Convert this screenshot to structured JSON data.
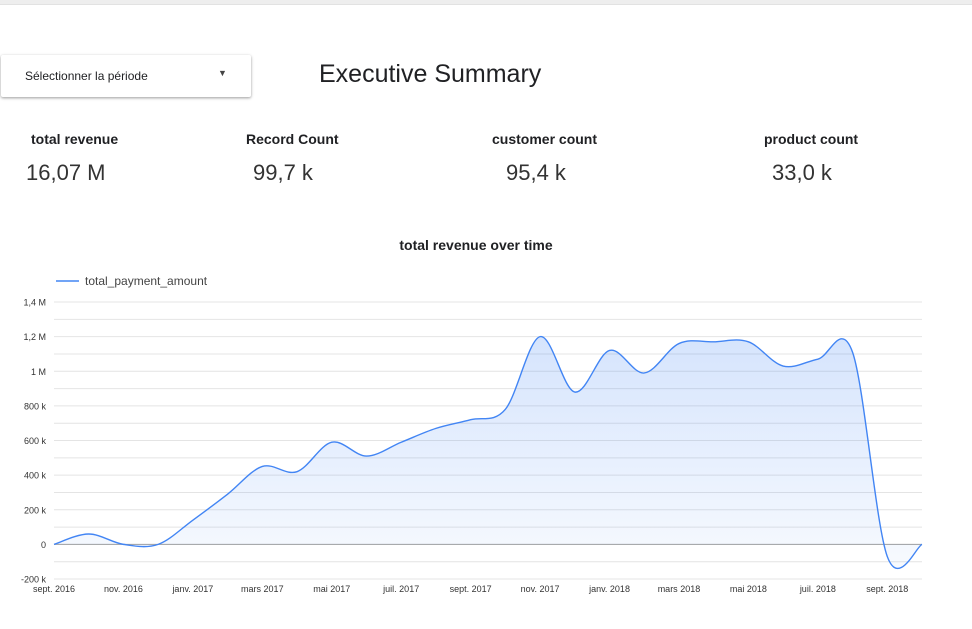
{
  "period_selector": {
    "label": "Sélectionner la période"
  },
  "header": {
    "title": "Executive Summary"
  },
  "kpis": [
    {
      "label": "total revenue",
      "value": "16,07 M"
    },
    {
      "label": "Record Count",
      "value": "99,7 k"
    },
    {
      "label": "customer count",
      "value": "95,4 k"
    },
    {
      "label": "product count",
      "value": "33,0 k"
    }
  ],
  "chart_data": {
    "type": "area",
    "title": "total revenue over time",
    "xlabel": "",
    "ylabel": "",
    "ylim": [
      -200000,
      1400000
    ],
    "y_ticks": [
      -200000,
      0,
      200000,
      400000,
      600000,
      800000,
      1000000,
      1200000,
      1400000
    ],
    "y_tick_labels": [
      "-200 k",
      "0",
      "200 k",
      "400 k",
      "600 k",
      "800 k",
      "1 M",
      "1,2 M",
      "1,4 M"
    ],
    "x_tick_labels": [
      "sept. 2016",
      "nov. 2016",
      "janv. 2017",
      "mars 2017",
      "mai 2017",
      "juil. 2017",
      "sept. 2017",
      "nov. 2017",
      "janv. 2018",
      "mars 2018",
      "mai 2018",
      "juil. 2018",
      "sept. 2018"
    ],
    "legend": "top-left",
    "series": [
      {
        "name": "total_payment_amount",
        "color": "#4285f4",
        "x": [
          0,
          1,
          2,
          3,
          4,
          5,
          6,
          7,
          8,
          9,
          10,
          11,
          12,
          13,
          14,
          15,
          16,
          17,
          18,
          19,
          20,
          21,
          22,
          23,
          24,
          25
        ],
        "values": [
          0,
          60000,
          0,
          0,
          140000,
          290000,
          450000,
          420000,
          590000,
          510000,
          590000,
          670000,
          720000,
          780000,
          1200000,
          880000,
          1120000,
          990000,
          1160000,
          1170000,
          1170000,
          1030000,
          1070000,
          1110000,
          -70000,
          0
        ]
      }
    ]
  }
}
